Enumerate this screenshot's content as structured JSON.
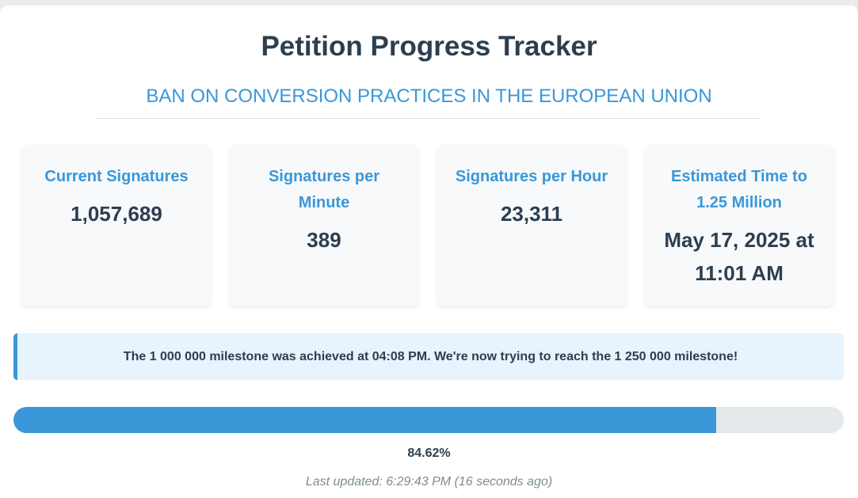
{
  "header": {
    "title": "Petition Progress Tracker",
    "subtitle": "BAN ON CONVERSION PRACTICES IN THE EUROPEAN UNION"
  },
  "stats": [
    {
      "label": "Current Signatures",
      "value": "1,057,689"
    },
    {
      "label": "Signatures per Minute",
      "value": "389"
    },
    {
      "label": "Signatures per Hour",
      "value": "23,311"
    },
    {
      "label": "Estimated Time to 1.25 Million",
      "value": "May 17, 2025 at 11:01 AM"
    }
  ],
  "milestone": {
    "message": "The 1 000 000 milestone was achieved at 04:08 PM. We're now trying to reach the 1 250 000 milestone!"
  },
  "progress": {
    "percent": 84.62,
    "label": "84.62%"
  },
  "footer": {
    "last_updated": "Last updated: 6:29:43 PM (16 seconds ago)"
  },
  "colors": {
    "accent": "#3a97d8",
    "text": "#2c3e50",
    "muted": "#7f8c8d"
  }
}
